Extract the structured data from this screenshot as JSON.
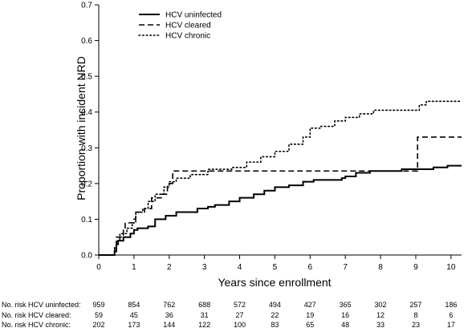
{
  "chart_data": {
    "type": "line",
    "xlabel": "Years since enrollment",
    "ylabel": "Proportion with incident NRD",
    "xlim": [
      0,
      10.3
    ],
    "ylim": [
      0,
      0.7
    ],
    "x_ticks": [
      0,
      1,
      2,
      3,
      4,
      5,
      6,
      7,
      8,
      9,
      10
    ],
    "y_ticks": [
      0.0,
      0.1,
      0.2,
      0.3,
      0.4,
      0.5,
      0.6,
      0.7
    ],
    "y_tick_labels": [
      "0.0",
      "0.1",
      "0.2",
      "0.3",
      "0.4",
      "0.5",
      "0.6",
      "0.7"
    ],
    "grid": false,
    "legend_position": "top-left",
    "series": [
      {
        "name": "HCV uninfected",
        "style": "solid",
        "points": [
          [
            0,
            0
          ],
          [
            0.4,
            0
          ],
          [
            0.45,
            0.01
          ],
          [
            0.5,
            0.03
          ],
          [
            0.55,
            0.04
          ],
          [
            0.7,
            0.05
          ],
          [
            0.9,
            0.06
          ],
          [
            1.0,
            0.07
          ],
          [
            1.1,
            0.075
          ],
          [
            1.4,
            0.08
          ],
          [
            1.6,
            0.1
          ],
          [
            1.9,
            0.11
          ],
          [
            2.2,
            0.12
          ],
          [
            2.6,
            0.12
          ],
          [
            2.8,
            0.13
          ],
          [
            3.1,
            0.135
          ],
          [
            3.3,
            0.14
          ],
          [
            3.7,
            0.15
          ],
          [
            4.0,
            0.16
          ],
          [
            4.4,
            0.17
          ],
          [
            4.7,
            0.18
          ],
          [
            5.0,
            0.19
          ],
          [
            5.4,
            0.195
          ],
          [
            5.8,
            0.205
          ],
          [
            6.1,
            0.21
          ],
          [
            6.4,
            0.21
          ],
          [
            6.9,
            0.215
          ],
          [
            7.0,
            0.22
          ],
          [
            7.3,
            0.23
          ],
          [
            7.7,
            0.235
          ],
          [
            8.2,
            0.235
          ],
          [
            8.6,
            0.24
          ],
          [
            9.2,
            0.24
          ],
          [
            9.5,
            0.245
          ],
          [
            9.9,
            0.25
          ],
          [
            10.3,
            0.25
          ]
        ]
      },
      {
        "name": "HCV cleared",
        "style": "dashed",
        "points": [
          [
            0,
            0
          ],
          [
            0.4,
            0
          ],
          [
            0.45,
            0.02
          ],
          [
            0.5,
            0.05
          ],
          [
            0.7,
            0.07
          ],
          [
            0.75,
            0.09
          ],
          [
            1.0,
            0.1
          ],
          [
            1.05,
            0.12
          ],
          [
            1.3,
            0.13
          ],
          [
            1.5,
            0.16
          ],
          [
            1.8,
            0.17
          ],
          [
            1.95,
            0.2
          ],
          [
            2.1,
            0.235
          ],
          [
            9.0,
            0.235
          ],
          [
            9.05,
            0.33
          ],
          [
            10.3,
            0.33
          ]
        ]
      },
      {
        "name": "HCV chronic",
        "style": "dotted",
        "points": [
          [
            0,
            0
          ],
          [
            0.4,
            0
          ],
          [
            0.45,
            0.02
          ],
          [
            0.5,
            0.04
          ],
          [
            0.6,
            0.06
          ],
          [
            0.8,
            0.075
          ],
          [
            0.95,
            0.09
          ],
          [
            1.05,
            0.12
          ],
          [
            1.25,
            0.13
          ],
          [
            1.4,
            0.15
          ],
          [
            1.6,
            0.17
          ],
          [
            1.85,
            0.19
          ],
          [
            2.0,
            0.205
          ],
          [
            2.2,
            0.215
          ],
          [
            2.6,
            0.225
          ],
          [
            3.1,
            0.24
          ],
          [
            3.8,
            0.245
          ],
          [
            4.2,
            0.26
          ],
          [
            4.6,
            0.275
          ],
          [
            5.0,
            0.29
          ],
          [
            5.4,
            0.31
          ],
          [
            5.8,
            0.33
          ],
          [
            6.0,
            0.355
          ],
          [
            6.3,
            0.36
          ],
          [
            6.7,
            0.375
          ],
          [
            7.0,
            0.385
          ],
          [
            7.4,
            0.395
          ],
          [
            7.8,
            0.405
          ],
          [
            8.2,
            0.405
          ],
          [
            8.9,
            0.405
          ],
          [
            9.1,
            0.42
          ],
          [
            9.3,
            0.43
          ],
          [
            10.3,
            0.43
          ]
        ]
      }
    ],
    "risk_table": {
      "timepoints": [
        0,
        1,
        2,
        3,
        4,
        5,
        6,
        7,
        8,
        9,
        10
      ],
      "rows": [
        {
          "label": "No. risk HCV uninfected:",
          "values": [
            "959",
            "854",
            "762",
            "688",
            "572",
            "494",
            "427",
            "365",
            "302",
            "257",
            "186"
          ]
        },
        {
          "label": "No. risk HCV cleared:",
          "values": [
            "59",
            "45",
            "36",
            "31",
            "27",
            "22",
            "19",
            "16",
            "12",
            "8",
            "6"
          ]
        },
        {
          "label": "No. risk HCV chronic:",
          "values": [
            "202",
            "173",
            "144",
            "122",
            "100",
            "83",
            "65",
            "48",
            "33",
            "23",
            "17"
          ]
        }
      ]
    }
  }
}
